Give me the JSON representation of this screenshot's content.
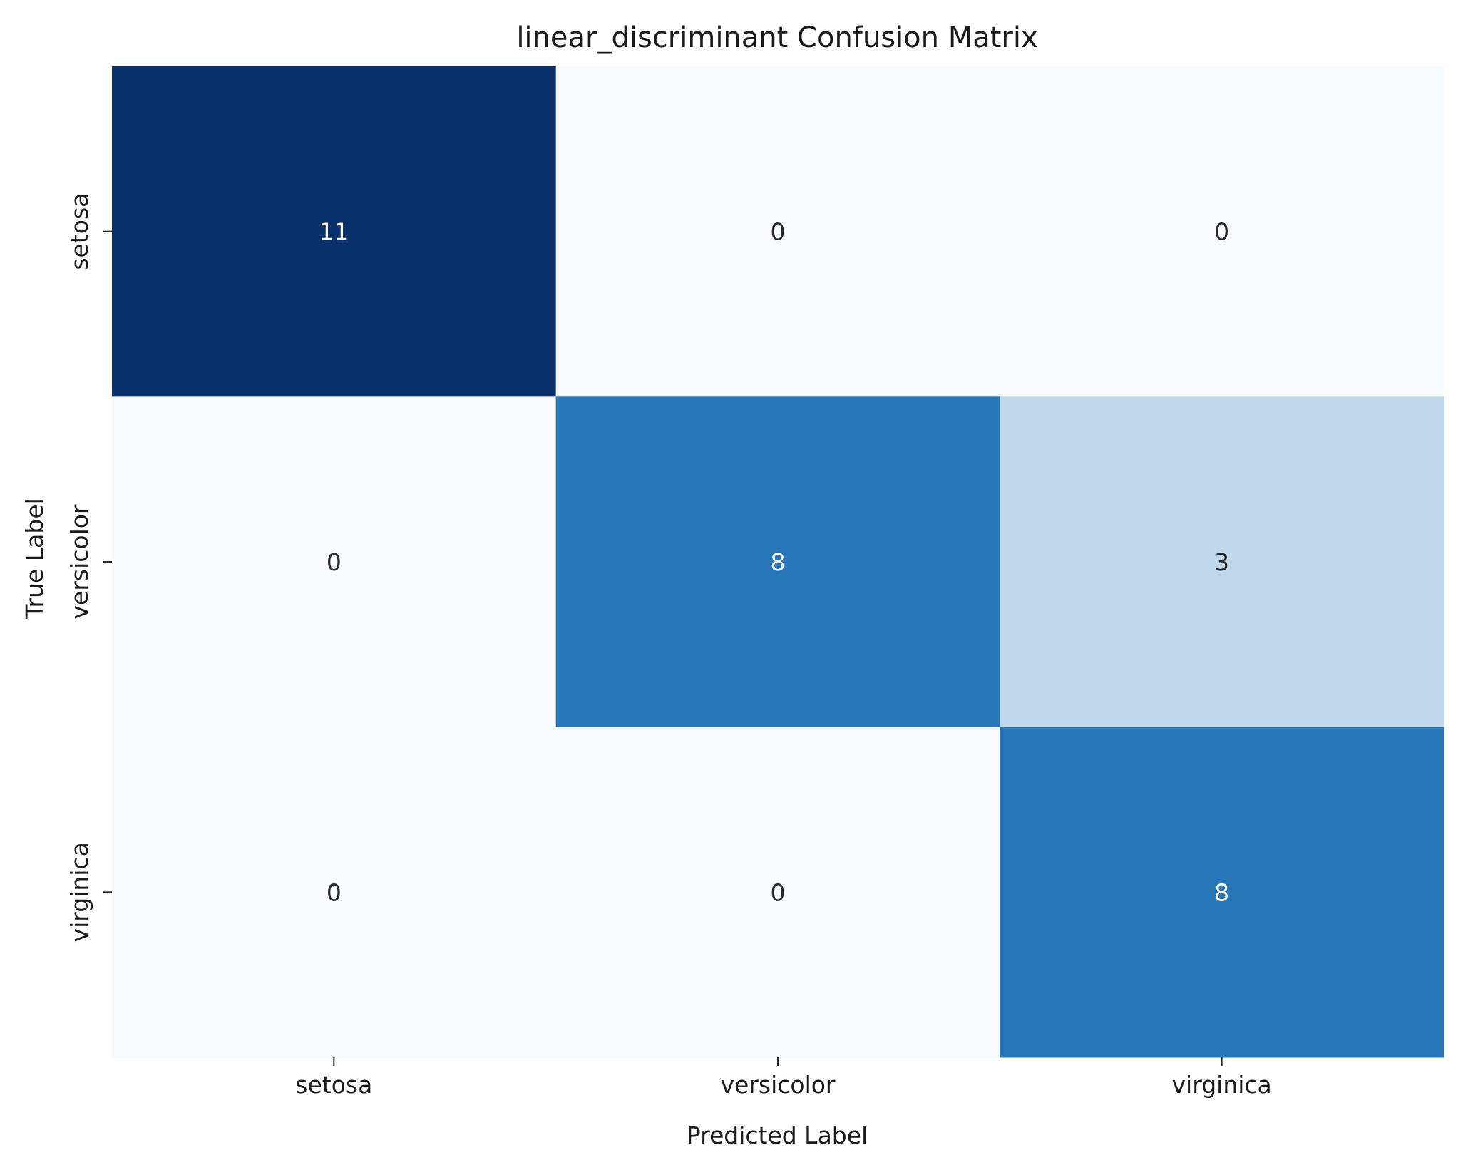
{
  "chart_data": {
    "type": "heatmap",
    "title": "linear_discriminant Confusion Matrix",
    "xlabel": "Predicted Label",
    "ylabel": "True Label",
    "x_categories": [
      "setosa",
      "versicolor",
      "virginica"
    ],
    "y_categories": [
      "setosa",
      "versicolor",
      "virginica"
    ],
    "values": [
      [
        11,
        0,
        0
      ],
      [
        0,
        8,
        3
      ],
      [
        0,
        0,
        8
      ]
    ],
    "colormap": "Blues",
    "color_range": [
      0,
      11
    ],
    "colorbar": false,
    "grid": false,
    "colors": {
      "min": "#f7fbff",
      "max": "#08306b",
      "text_dark": "#262626",
      "text_light": "#ffffff"
    }
  }
}
